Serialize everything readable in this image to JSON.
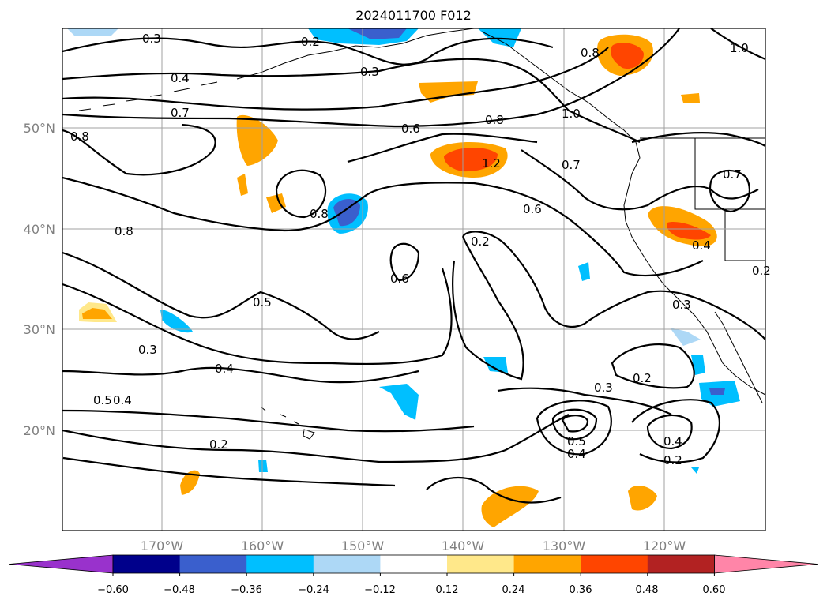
{
  "title": "2024011700 F012",
  "map": {
    "longitude_labels": [
      "170°W",
      "160°W",
      "150°W",
      "140°W",
      "130°W",
      "120°W"
    ],
    "latitude_labels": [
      "50°N",
      "40°N",
      "30°N",
      "20°N"
    ],
    "gridlines": true,
    "contour_labels": [
      "0.3",
      "0.2",
      "0.4",
      "0.3",
      "0.8",
      "1.0",
      "0.7",
      "0.6",
      "0.8",
      "1.0",
      "0.8",
      "1.2",
      "0.7",
      "0.8",
      "0.6",
      "0.7",
      "0.8",
      "0.2",
      "0.4",
      "0.6",
      "0.5",
      "0.3",
      "0.3",
      "0.4",
      "0.5",
      "0.4",
      "0.2",
      "0.2",
      "0.3",
      "0.5",
      "0.4",
      "0.4",
      "0.2",
      "0.2"
    ]
  },
  "colorbar": {
    "tick_labels": [
      "−0.60",
      "−0.48",
      "−0.36",
      "−0.24",
      "−0.12",
      "0.12",
      "0.24",
      "0.36",
      "0.48",
      "0.60"
    ],
    "colors": [
      "#9932cc",
      "#00008b",
      "#3a5fcd",
      "#00bfff",
      "#add8f6",
      "#ffffff",
      "#ffe88a",
      "#ffa500",
      "#ff4500",
      "#b22222",
      "#ff85a8"
    ]
  }
}
